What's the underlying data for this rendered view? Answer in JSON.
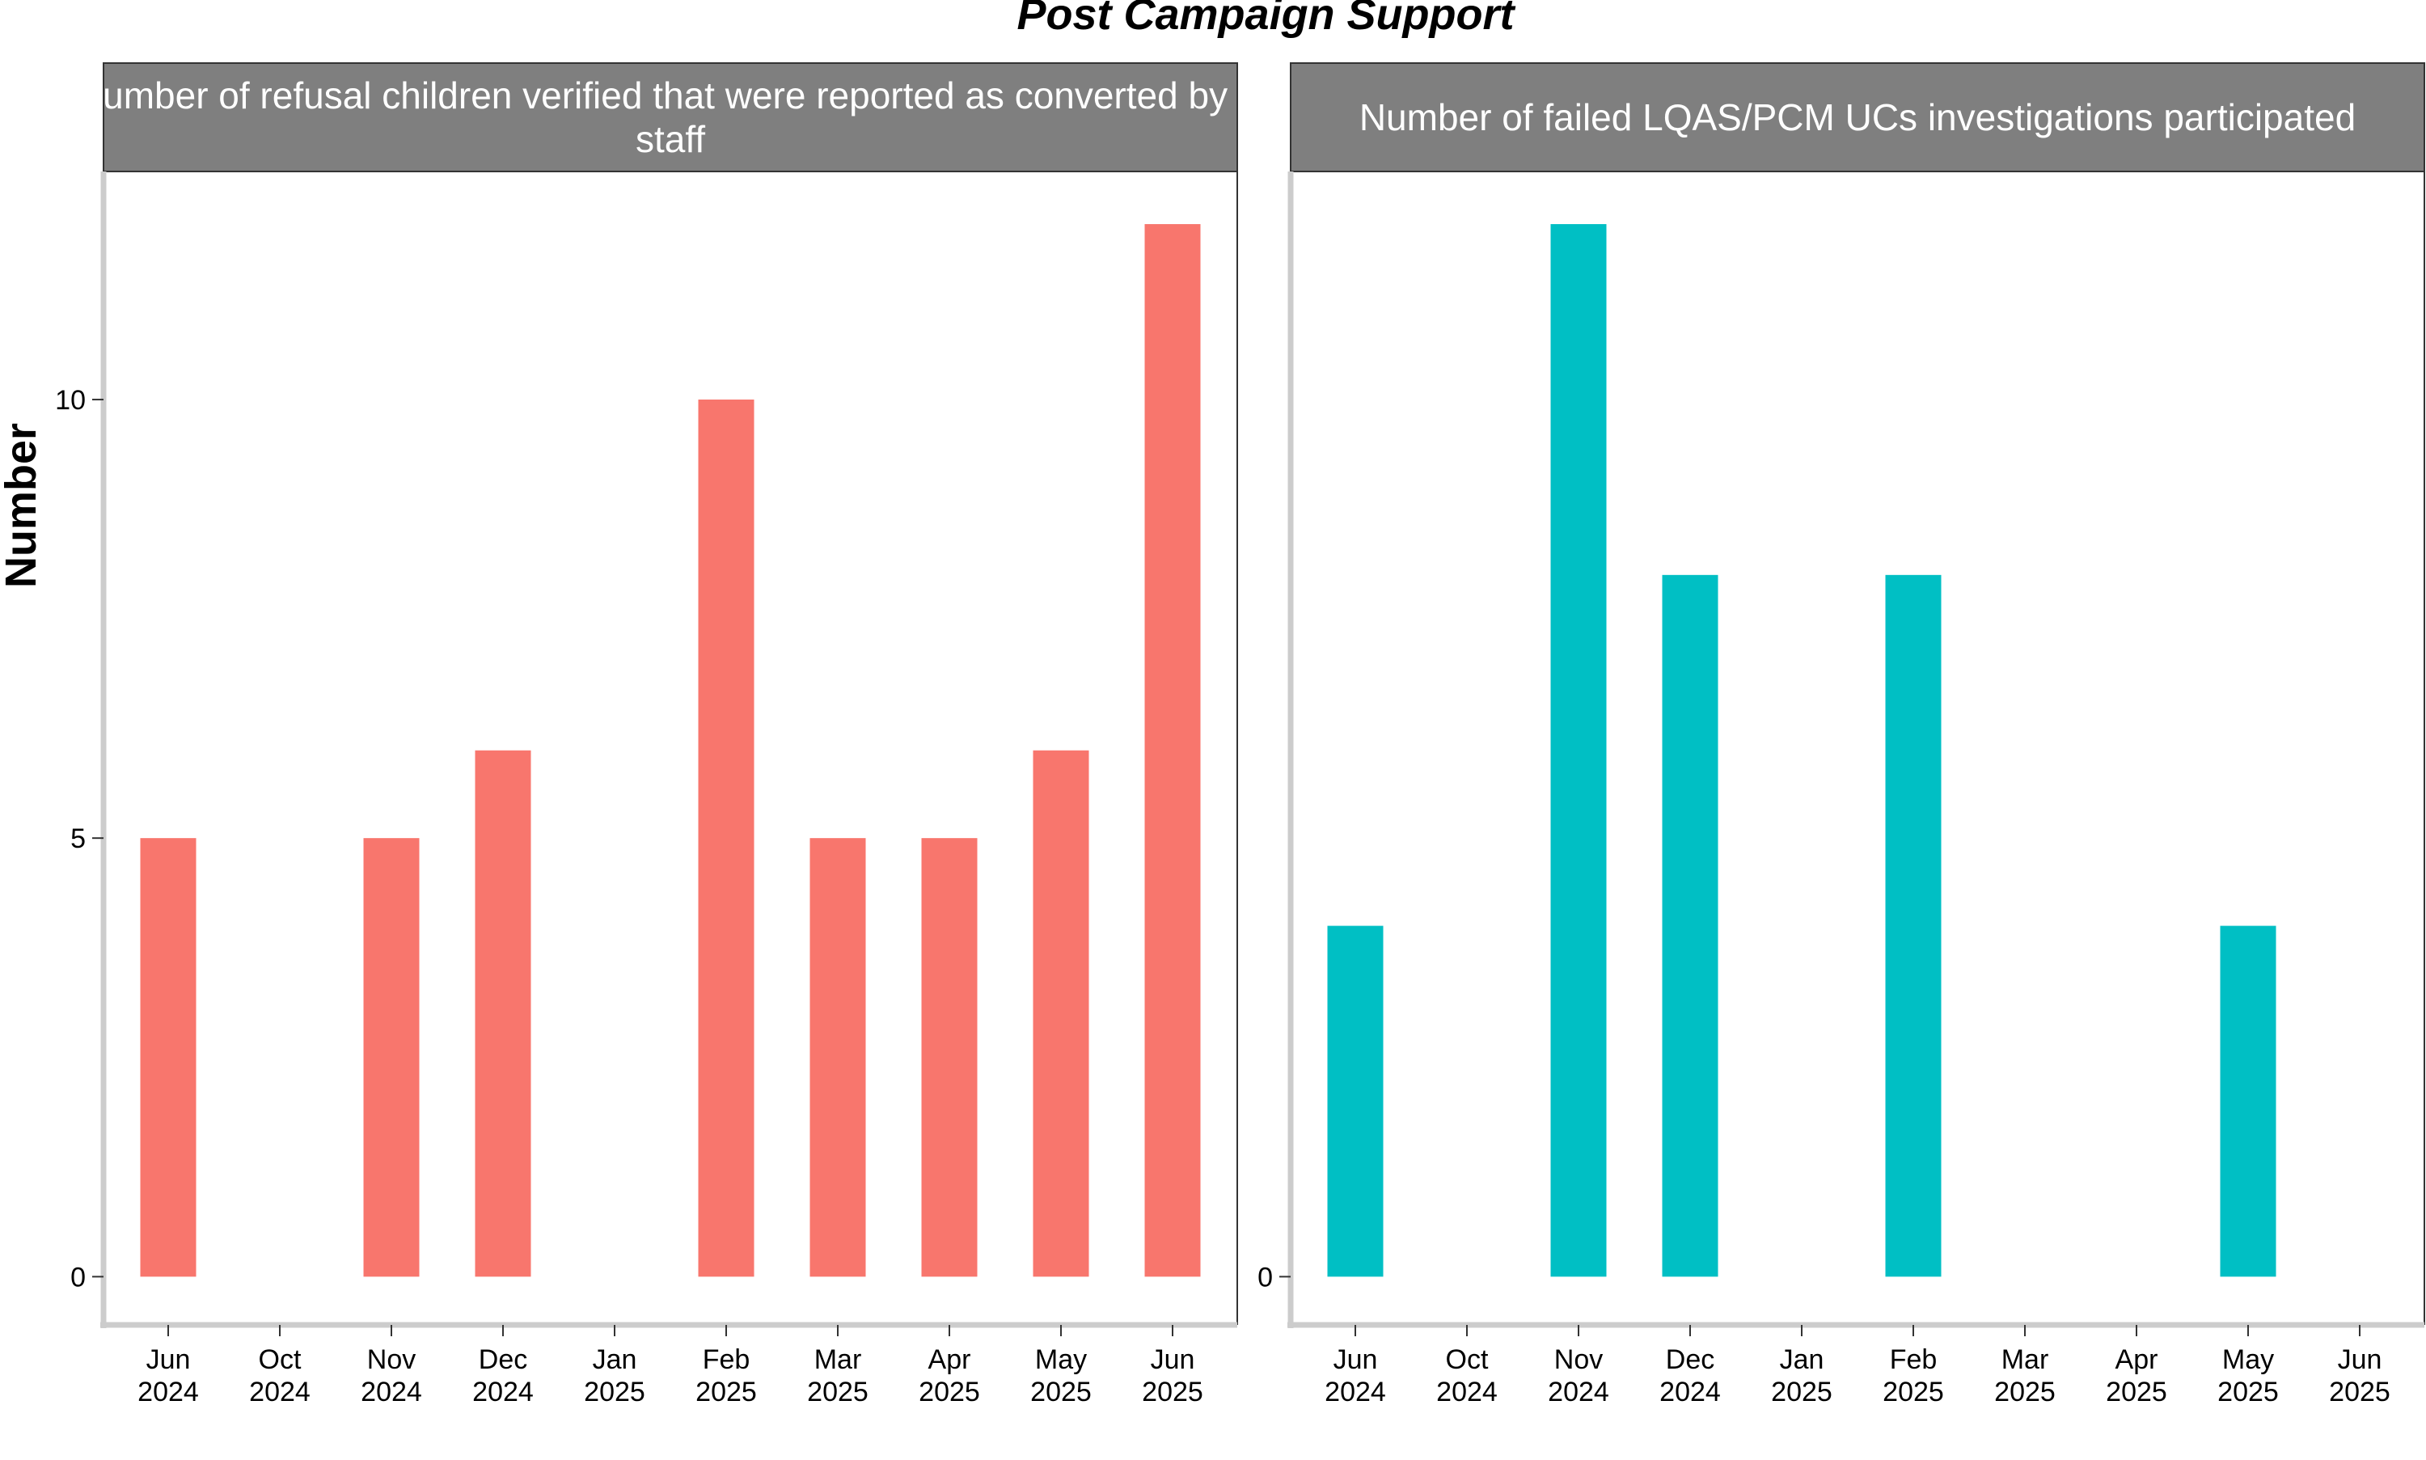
{
  "chart_data": {
    "type": "bar",
    "title": "Post Campaign Support",
    "ylabel": "Number",
    "xlabel": "",
    "categories": [
      [
        "Jun",
        "2024"
      ],
      [
        "Oct",
        "2024"
      ],
      [
        "Nov",
        "2024"
      ],
      [
        "Dec",
        "2024"
      ],
      [
        "Jan",
        "2025"
      ],
      [
        "Feb",
        "2025"
      ],
      [
        "Mar",
        "2025"
      ],
      [
        "Apr",
        "2025"
      ],
      [
        "May",
        "2025"
      ],
      [
        "Jun",
        "2025"
      ]
    ],
    "ylim": [
      -0.55,
      12.6
    ],
    "grid": false,
    "legend": "none",
    "panels": [
      {
        "title_lines": [
          "Number of refusal children verified that were reported as converted by C",
          "staff"
        ],
        "color": "#F8766D",
        "yticks": [
          0,
          5,
          10
        ],
        "values": [
          5,
          null,
          5,
          6,
          null,
          10,
          5,
          5,
          6,
          12
        ]
      },
      {
        "title_lines": [
          "Number of failed LQAS/PCM UCs investigations participated"
        ],
        "color": "#00BFC4",
        "yticks": [
          0
        ],
        "values": [
          4,
          null,
          12,
          8,
          null,
          8,
          null,
          null,
          4,
          null
        ]
      }
    ]
  }
}
